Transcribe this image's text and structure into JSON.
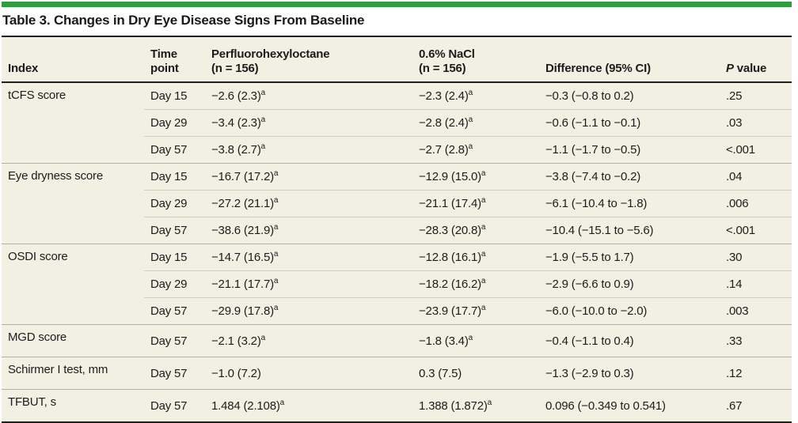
{
  "title": "Table 3. Changes in Dry Eye Disease Signs From Baseline",
  "colors": {
    "accent_green": "#2e9d40",
    "table_background": "#f2f0e3",
    "rule_dark": "#1e1e1e",
    "divider_group": "#b2afa2",
    "divider_sub": "#d1cec0"
  },
  "header": {
    "index": "Index",
    "time_line1": "Time",
    "time_line2": "point",
    "drug_line1": "Perfluorohexyloctane",
    "drug_line2": "(n = 156)",
    "nacl_line1": "0.6% NaCl",
    "nacl_line2": "(n = 156)",
    "difference": "Difference (95% CI)",
    "p_italic": "P",
    "p_rest": " value"
  },
  "rows": [
    {
      "index": "tCFS score",
      "time": "Day 15",
      "drug": "−2.6 (2.3)",
      "drug_sup": "a",
      "nacl": "−2.3 (2.4)",
      "nacl_sup": "a",
      "diff": "−0.3 (−0.8 to 0.2)",
      "p": ".25"
    },
    {
      "time": "Day 29",
      "drug": "−3.4 (2.3)",
      "drug_sup": "a",
      "nacl": "−2.8 (2.4)",
      "nacl_sup": "a",
      "diff": "−0.6 (−1.1 to −0.1)",
      "p": ".03"
    },
    {
      "time": "Day 57",
      "drug": "−3.8 (2.7)",
      "drug_sup": "a",
      "nacl": "−2.7 (2.8)",
      "nacl_sup": "a",
      "diff": "−1.1 (−1.7 to −0.5)",
      "p": "<.001"
    },
    {
      "index": "Eye dryness score",
      "time": "Day 15",
      "drug": "−16.7 (17.2)",
      "drug_sup": "a",
      "nacl": "−12.9 (15.0)",
      "nacl_sup": "a",
      "diff": "−3.8 (−7.4 to −0.2)",
      "p": ".04"
    },
    {
      "time": "Day 29",
      "drug": "−27.2 (21.1)",
      "drug_sup": "a",
      "nacl": "−21.1 (17.4)",
      "nacl_sup": "a",
      "diff": "−6.1 (−10.4 to −1.8)",
      "p": ".006"
    },
    {
      "time": "Day 57",
      "drug": "−38.6 (21.9)",
      "drug_sup": "a",
      "nacl": "−28.3 (20.8)",
      "nacl_sup": "a",
      "diff": "−10.4 (−15.1 to −5.6)",
      "p": "<.001"
    },
    {
      "index": "OSDI score",
      "time": "Day 15",
      "drug": "−14.7 (16.5)",
      "drug_sup": "a",
      "nacl": "−12.8 (16.1)",
      "nacl_sup": "a",
      "diff": "−1.9 (−5.5 to 1.7)",
      "p": ".30"
    },
    {
      "time": "Day 29",
      "drug": "−21.1 (17.7)",
      "drug_sup": "a",
      "nacl": "−18.2 (16.2)",
      "nacl_sup": "a",
      "diff": "−2.9 (−6.6 to 0.9)",
      "p": ".14"
    },
    {
      "time": "Day 57",
      "drug": "−29.9 (17.8)",
      "drug_sup": "a",
      "nacl": "−23.9 (17.7)",
      "nacl_sup": "a",
      "diff": "−6.0 (−10.0 to −2.0)",
      "p": ".003"
    },
    {
      "index": "MGD score",
      "time": "Day 57",
      "drug": "−2.1 (3.2)",
      "drug_sup": "a",
      "nacl": "−1.8 (3.4)",
      "nacl_sup": "a",
      "diff": "−0.4 (−1.1 to 0.4)",
      "p": ".33"
    },
    {
      "index": "Schirmer I test, mm",
      "time": "Day 57",
      "drug": "−1.0 (7.2)",
      "nacl": "0.3 (7.5)",
      "diff": "−1.3 (−2.9 to 0.3)",
      "p": ".12"
    },
    {
      "index": "TFBUT, s",
      "time": "Day 57",
      "drug": "1.484 (2.108)",
      "drug_sup": "a",
      "nacl": "1.388 (1.872)",
      "nacl_sup": "a",
      "diff": "0.096 (−0.349 to 0.541)",
      "p": ".67"
    }
  ]
}
